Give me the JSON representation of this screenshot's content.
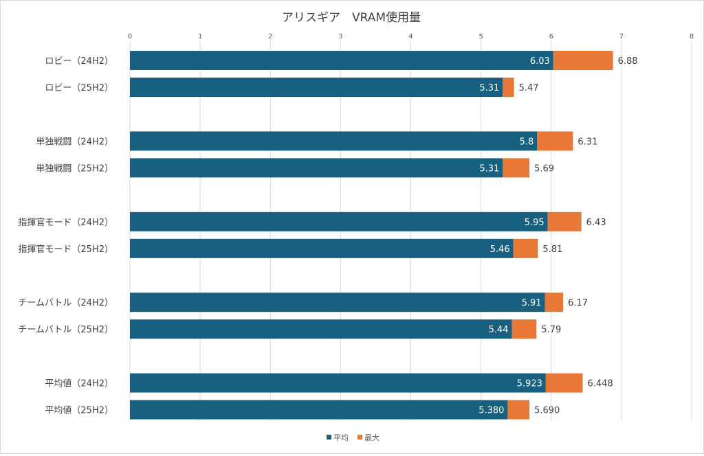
{
  "chart_data": {
    "type": "bar",
    "orientation": "horizontal",
    "stacked_overlay": true,
    "title": "アリスギア　VRAM使用量",
    "xlabel": "",
    "ylabel": "",
    "xlim": [
      0,
      8
    ],
    "ticks": [
      "0",
      "1",
      "2",
      "3",
      "4",
      "5",
      "6",
      "7",
      "8"
    ],
    "grid": true,
    "legend_position": "bottom",
    "categories": [
      "ロビー（24H2）",
      "ロビー（25H2）",
      "単独戦闘（24H2）",
      "単独戦闘（25H2）",
      "指揮官モード（24H2）",
      "指揮官モード（25H2）",
      "チームバトル（24H2）",
      "チームバトル（25H2）",
      "平均値（24H2）",
      "平均値（25H2）"
    ],
    "series": [
      {
        "name": "平均",
        "color": "#17607f",
        "values": [
          6.03,
          5.31,
          5.8,
          5.31,
          5.95,
          5.46,
          5.91,
          5.44,
          5.923,
          5.38
        ],
        "labels": [
          "6.03",
          "5.31",
          "5.8",
          "5.31",
          "5.95",
          "5.46",
          "5.91",
          "5.44",
          "5.923",
          "5.380"
        ]
      },
      {
        "name": "最大",
        "color": "#e87835",
        "values": [
          6.88,
          5.47,
          6.31,
          5.69,
          6.43,
          5.81,
          6.17,
          5.79,
          6.448,
          5.69
        ],
        "labels": [
          "6.88",
          "5.47",
          "6.31",
          "5.69",
          "6.43",
          "5.81",
          "6.17",
          "5.79",
          "6.448",
          "5.690"
        ]
      }
    ]
  }
}
